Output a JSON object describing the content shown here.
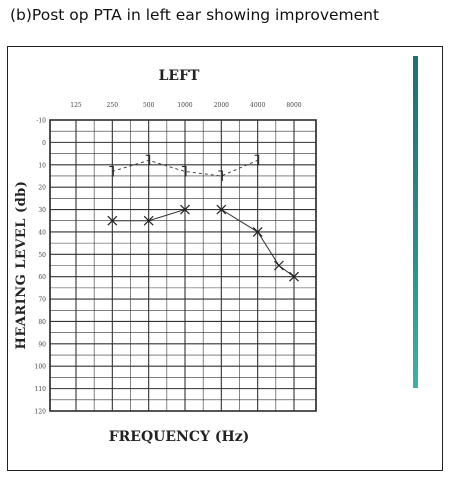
{
  "caption": "(b)Post op PTA in left ear showing improvement",
  "chart_data": {
    "type": "line",
    "title": "LEFT",
    "xlabel": "FREQUENCY (Hz)",
    "ylabel": "HEARING LEVEL (db)",
    "x_ticks": [
      "125",
      "250",
      "500",
      "1000",
      "2000",
      "4000",
      "8000"
    ],
    "y_ticks": [
      "-10",
      "0",
      "10",
      "20",
      "30",
      "40",
      "50",
      "60",
      "70",
      "80",
      "90",
      "100",
      "110",
      "120"
    ],
    "ylim": [
      -10,
      120
    ],
    "series": [
      {
        "name": "",
        "marker": "x",
        "style": "solid",
        "points": [
          {
            "x": "250",
            "y": 35
          },
          {
            "x": "500",
            "y": 35
          },
          {
            "x": "1000",
            "y": 30
          },
          {
            "x": "2000",
            "y": 30
          },
          {
            "x": "4000",
            "y": 40
          },
          {
            "x": "6000",
            "y": 55
          },
          {
            "x": "8000",
            "y": 60
          }
        ]
      },
      {
        "name": "",
        "marker": "bracket",
        "style": "dashed",
        "points": [
          {
            "x": "250",
            "y": 13
          },
          {
            "x": "500",
            "y": 8
          },
          {
            "x": "1000",
            "y": 13
          },
          {
            "x": "2000",
            "y": 15
          },
          {
            "x": "4000",
            "y": 8
          }
        ]
      }
    ]
  }
}
